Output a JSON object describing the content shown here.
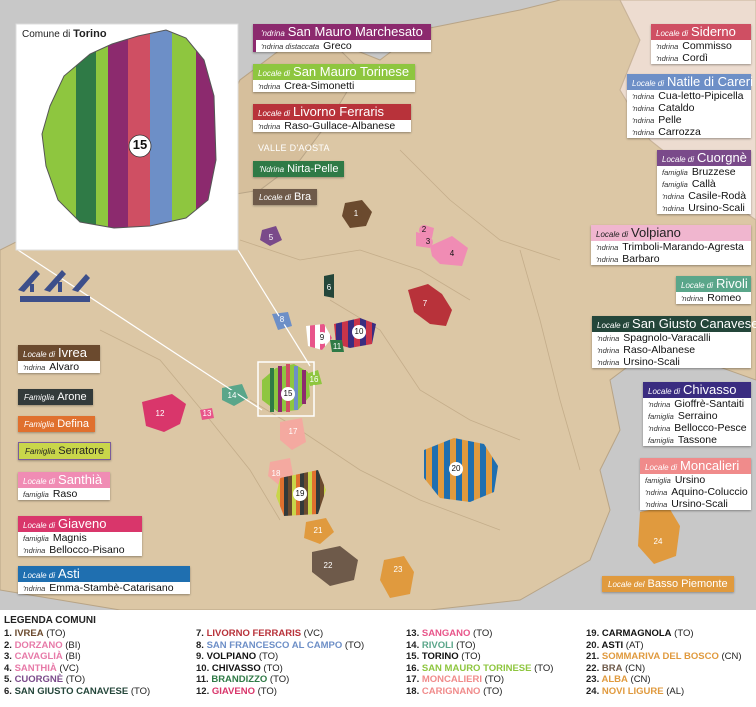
{
  "inset": {
    "label_prefix": "Comune di",
    "label_city": "Torino",
    "number": "15"
  },
  "region_label": "VALLE D'AOSTA",
  "colors": {
    "bg_map": "#dcc7a5",
    "outside": "#c8c8c8",
    "pale": "#eddcd0",
    "border": "#b8a486"
  },
  "boxes": {
    "san_mauro_marchesato": {
      "prefix": "'ndrina",
      "title": "San Mauro Marchesato",
      "color": "#8c2a6e",
      "rows": [
        {
          "label": "'ndrina distaccata",
          "value": "Greco"
        }
      ]
    },
    "san_mauro_torinese": {
      "prefix": "Locale di",
      "title": "San Mauro Torinese",
      "color": "#8ec63f",
      "rows": [
        {
          "label": "'ndrina",
          "value": "Crea-Simonetti"
        }
      ]
    },
    "livorno_ferraris": {
      "prefix": "Locale di",
      "title": "Livorno Ferraris",
      "color": "#b8323a",
      "rows": [
        {
          "label": "'ndrina",
          "value": "Raso-Gullace-Albanese"
        }
      ]
    },
    "nirta_pelle": {
      "prefix": "'Ndrina",
      "title": "Nirta-Pelle",
      "color": "#2f7a46",
      "rows": []
    },
    "bra": {
      "prefix": "Locale di",
      "title": "Bra",
      "color": "#6e5a4a",
      "rows": []
    },
    "siderno": {
      "prefix": "Locale di",
      "title": "Siderno",
      "color": "#cf4f63",
      "rows": [
        {
          "label": "'ndrina",
          "value": "Commisso"
        },
        {
          "label": "'ndrina",
          "value": "Cordì"
        }
      ]
    },
    "natile": {
      "prefix": "Locale di",
      "title": "Natile di Careri",
      "color": "#6d8fc7",
      "rows": [
        {
          "label": "'ndrina",
          "value": "Cua-letto-Pipicella"
        },
        {
          "label": "'ndrina",
          "value": "Cataldo"
        },
        {
          "label": "'ndrina",
          "value": "Pelle"
        },
        {
          "label": "'ndrina",
          "value": "Carrozza"
        }
      ]
    },
    "cuorgne": {
      "prefix": "Locale di",
      "title": "Cuorgnè",
      "color": "#7a4a8a",
      "rows": [
        {
          "label": "famiglia",
          "value": "Bruzzese"
        },
        {
          "label": "famiglia",
          "value": "Callà"
        },
        {
          "label": "'ndrina",
          "value": "Casile-Rodà"
        },
        {
          "label": "'ndrina",
          "value": "Ursino-Scali"
        }
      ]
    },
    "volpiano": {
      "prefix": "Locale di",
      "title": "Volpiano",
      "color": "#f0b6cf",
      "dark": true,
      "rows": [
        {
          "label": "'ndrina",
          "value": "Trimboli-Marando-Agresta"
        },
        {
          "label": "'ndrina",
          "value": "Barbaro"
        }
      ]
    },
    "rivoli": {
      "prefix": "Locale di",
      "title": "Rivoli",
      "color": "#5aa68a",
      "rows": [
        {
          "label": "'ndrina",
          "value": "Romeo"
        }
      ]
    },
    "san_giusto": {
      "prefix": "Locale di",
      "title": "San Giusto Canavese",
      "color": "#24463a",
      "rows": [
        {
          "label": "'ndrina",
          "value": "Spagnolo-Varacalli"
        },
        {
          "label": "'ndrina",
          "value": "Raso-Albanese"
        },
        {
          "label": "'ndrina",
          "value": "Ursino-Scali"
        }
      ]
    },
    "chivasso": {
      "prefix": "Locale di",
      "title": "Chivasso",
      "color": "#3a2c80",
      "rows": [
        {
          "label": "'ndrina",
          "value": "Gioffrè-Santaiti"
        },
        {
          "label": "famiglia",
          "value": "Serraino"
        },
        {
          "label": "'ndrina",
          "value": "Bellocco-Pesce"
        },
        {
          "label": "famiglia",
          "value": "Tassone"
        }
      ]
    },
    "moncalieri": {
      "prefix": "Locale di",
      "title": "Moncalieri",
      "color": "#f08b8b",
      "rows": [
        {
          "label": "famiglia",
          "value": "Ursino"
        },
        {
          "label": "'ndrina",
          "value": "Aquino-Coluccio"
        },
        {
          "label": "'ndrina",
          "value": "Ursino-Scali"
        }
      ]
    },
    "ivrea": {
      "prefix": "Locale di",
      "title": "Ivrea",
      "color": "#6b4a2e",
      "rows": [
        {
          "label": "'ndrina",
          "value": "Alvaro"
        }
      ]
    },
    "santhia": {
      "prefix": "Locale di",
      "title": "Santhià",
      "color": "#f08cb4",
      "rows": [
        {
          "label": "famiglia",
          "value": "Raso"
        }
      ]
    },
    "giaveno": {
      "prefix": "Locale di",
      "title": "Giaveno",
      "color": "#d9366b",
      "rows": [
        {
          "label": "famiglia",
          "value": "Magnis"
        },
        {
          "label": "'ndrina",
          "value": "Bellocco-Pisano"
        }
      ]
    },
    "asti": {
      "prefix": "Locale di",
      "title": "Asti",
      "color": "#1f6fb0",
      "rows": [
        {
          "label": "'ndrina",
          "value": "Emma-Stambè-Catarisano"
        }
      ]
    }
  },
  "tags": {
    "arone": {
      "prefix": "Famiglia",
      "title": "Arone",
      "color": "#333a3a"
    },
    "defina": {
      "prefix": "Famiglia",
      "title": "Defina",
      "color": "#e0702e"
    },
    "serratore": {
      "prefix": "Famiglia",
      "title": "Serratore",
      "color": "#c9d64a",
      "border": "#7a5c9c"
    },
    "basso_piemonte": {
      "prefix": "Locale del",
      "title": "Basso Piemonte",
      "color": "#e09a3e"
    }
  },
  "map_numbers": [
    "1",
    "2",
    "3",
    "4",
    "5",
    "6",
    "7",
    "8",
    "9",
    "10",
    "11",
    "12",
    "13",
    "14",
    "15",
    "16",
    "17",
    "18",
    "19",
    "20",
    "21",
    "22",
    "23",
    "24"
  ],
  "legend": {
    "title": "LEGENDA COMUNI",
    "items": [
      {
        "n": "1.",
        "name": "IVREA",
        "prov": "(TO)",
        "color": "#6b4a2e"
      },
      {
        "n": "2.",
        "name": "DORZANO",
        "prov": "(BI)",
        "color": "#e77aa8"
      },
      {
        "n": "3.",
        "name": "CAVAGLIÀ",
        "prov": "(BI)",
        "color": "#e77aa8"
      },
      {
        "n": "4.",
        "name": "SANTHIÀ",
        "prov": "(VC)",
        "color": "#e77aa8"
      },
      {
        "n": "5.",
        "name": "CUORGNÈ",
        "prov": "(TO)",
        "color": "#7a4a8a"
      },
      {
        "n": "6.",
        "name": "SAN GIUSTO CANAVESE",
        "prov": "(TO)",
        "color": "#24463a"
      },
      {
        "n": "7.",
        "name": "LIVORNO FERRARIS",
        "prov": "(VC)",
        "color": "#b8323a"
      },
      {
        "n": "8.",
        "name": "SAN FRANCESCO AL CAMPO",
        "prov": "(TO)",
        "color": "#6d8fc7"
      },
      {
        "n": "9.",
        "name": "VOLPIANO",
        "prov": "(TO)",
        "color": "#111111"
      },
      {
        "n": "10.",
        "name": "CHIVASSO",
        "prov": "(TO)",
        "color": "#111111"
      },
      {
        "n": "11.",
        "name": "BRANDIZZO",
        "prov": "(TO)",
        "color": "#2f7a46"
      },
      {
        "n": "12.",
        "name": "GIAVENO",
        "prov": "(TO)",
        "color": "#d9366b"
      },
      {
        "n": "13.",
        "name": "SANGANO",
        "prov": "(TO)",
        "color": "#e8558a"
      },
      {
        "n": "14.",
        "name": "RIVOLI",
        "prov": "(TO)",
        "color": "#5aa68a"
      },
      {
        "n": "15.",
        "name": "TORINO",
        "prov": "(TO)",
        "color": "#111111"
      },
      {
        "n": "16.",
        "name": "SAN MAURO TORINESE",
        "prov": "(TO)",
        "color": "#8ec63f"
      },
      {
        "n": "17.",
        "name": "MONCALIERI",
        "prov": "(TO)",
        "color": "#f08b8b"
      },
      {
        "n": "18.",
        "name": "CARIGNANO",
        "prov": "(TO)",
        "color": "#f08b8b"
      },
      {
        "n": "19.",
        "name": "CARMAGNOLA",
        "prov": "(TO)",
        "color": "#111111"
      },
      {
        "n": "20.",
        "name": "ASTI",
        "prov": "(AT)",
        "color": "#111111"
      },
      {
        "n": "21.",
        "name": "SOMMARIVA DEL BOSCO",
        "prov": "(CN)",
        "color": "#e09a3e"
      },
      {
        "n": "22.",
        "name": "BRA",
        "prov": "(CN)",
        "color": "#6e5a4a"
      },
      {
        "n": "23.",
        "name": "ALBA",
        "prov": "(CN)",
        "color": "#e09a3e"
      },
      {
        "n": "24.",
        "name": "NOVI LIGURE",
        "prov": "(AL)",
        "color": "#e09a3e"
      }
    ]
  }
}
